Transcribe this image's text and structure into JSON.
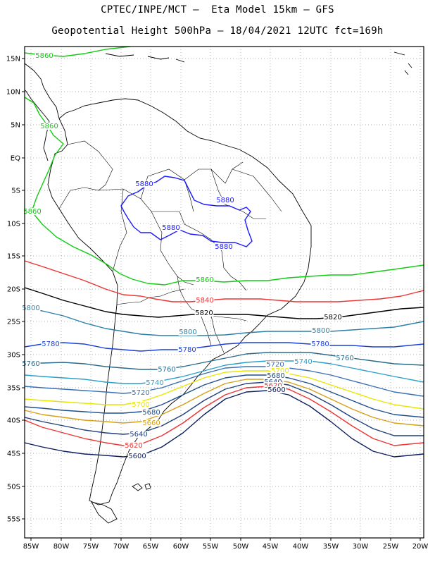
{
  "header": {
    "line1": "CPTEC/INPE/MCT –  Eta Model 15km – GFS",
    "line2": "Geopotential Height 500hPa – 18/04/2021 12UTC fct=169h"
  },
  "axes": {
    "lat_labels": [
      "15N",
      "10N",
      "5N",
      "EQ",
      "5S",
      "10S",
      "15S",
      "20S",
      "25S",
      "30S",
      "35S",
      "40S",
      "45S",
      "50S",
      "55S"
    ],
    "lon_labels": [
      "85W",
      "80W",
      "75W",
      "70W",
      "65W",
      "60W",
      "55W",
      "50W",
      "45W",
      "40W",
      "35W",
      "30W",
      "25W",
      "20W"
    ],
    "grid": "dotted"
  },
  "map_data": {
    "type": "contour",
    "variable": "500hPa geopotential height",
    "levels": [
      {
        "value": 5880,
        "color": "#1a1aff",
        "labels": [
          "5880",
          "5880",
          "5880",
          "5880"
        ]
      },
      {
        "value": 5860,
        "color": "#11cc11",
        "labels": [
          "5860",
          "5860",
          "5860",
          "5860"
        ]
      },
      {
        "value": 5840,
        "color": "#ee3333",
        "labels": [
          "5840"
        ]
      },
      {
        "value": 5820,
        "color": "#000000",
        "labels": [
          "5820",
          "5820"
        ]
      },
      {
        "value": 5800,
        "color": "#2b7fa6",
        "labels": [
          "5800",
          "5800",
          "5800"
        ]
      },
      {
        "value": 5780,
        "color": "#1a3fd6",
        "labels": [
          "5780",
          "5780",
          "5780"
        ]
      },
      {
        "value": 5760,
        "color": "#2a6a8a",
        "labels": [
          "5760",
          "5760",
          "5760"
        ]
      },
      {
        "value": 5740,
        "color": "#2a9fc9",
        "labels": [
          "5740",
          "5740"
        ]
      },
      {
        "value": 5720,
        "color": "#3a6fb8",
        "labels": [
          "5720",
          "5720"
        ]
      },
      {
        "value": 5700,
        "color": "#e6e600",
        "labels": [
          "5700",
          "5700"
        ]
      },
      {
        "value": 5680,
        "color": "#1f4f8f",
        "labels": [
          "5680",
          "5680"
        ]
      },
      {
        "value": 5660,
        "color": "#d4a017",
        "labels": [
          "5660",
          "5660"
        ]
      },
      {
        "value": 5640,
        "color": "#1f3f7f",
        "labels": [
          "5640",
          "5640"
        ]
      },
      {
        "value": 5620,
        "color": "#ee3333",
        "labels": [
          "5620",
          "5620"
        ]
      },
      {
        "value": 5600,
        "color": "#0f1f5f",
        "labels": [
          "5600",
          "5600"
        ]
      }
    ]
  }
}
